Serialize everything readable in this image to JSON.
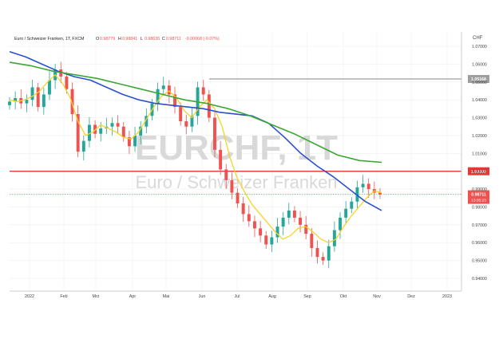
{
  "header": {
    "symbol": "Euro / Schweizer Franken, 1T, FXCM",
    "o_label": "O",
    "o_value": "0.98779",
    "h_label": "H",
    "h_value": "0.98841",
    "l_label": "L",
    "l_value": "0.98636",
    "c_label": "C",
    "c_value": "0.98711",
    "change": "-0.00068 (-0.07%)"
  },
  "watermark": {
    "ticker": "EURCHF, 1T",
    "name": "Euro / Schweizer Franken"
  },
  "colors": {
    "up": "#26a69a",
    "down": "#ef5350",
    "price_line": "#111111",
    "ma_fast": "#f5d327",
    "ma_mid": "#2a4fcf",
    "ma_slow": "#3aa832",
    "parity": "#e53935",
    "resistance": "#9e9e9e",
    "grid": "#eeeeee"
  },
  "chart_data": {
    "type": "line",
    "instrument": "EURCHF",
    "timeframe": "1T",
    "currency": "CHF",
    "x_ticks": [
      "2022",
      "Feb",
      "Mrz",
      "Apr",
      "Mai",
      "Jun",
      "Jul",
      "Aug",
      "Sep",
      "Okt",
      "Nov",
      "Dez",
      "2023"
    ],
    "y_ticks": [
      "1.07000",
      "1.06000",
      "1.05000",
      "1.04000",
      "1.03000",
      "1.02000",
      "1.01000",
      "1.00000",
      "0.99000",
      "0.98000",
      "0.97000",
      "0.96000",
      "0.95000",
      "0.94000"
    ],
    "ylim": [
      0.935,
      1.075
    ],
    "series": [
      {
        "name": "",
        "values": [
          1.039,
          1.041,
          1.038,
          1.04,
          1.047,
          1.036,
          1.043,
          1.051,
          1.057,
          1.053,
          1.046,
          1.032,
          1.011,
          1.017,
          1.026,
          1.021,
          1.024,
          1.025,
          1.027,
          1.025,
          1.019,
          1.014,
          1.02,
          1.025,
          1.031,
          1.038,
          1.046,
          1.048,
          1.043,
          1.036,
          1.028,
          1.025,
          1.031,
          1.047,
          1.043,
          1.03,
          1.012,
          1.001,
          0.995,
          0.988,
          0.982,
          0.976,
          0.972,
          0.968,
          0.964,
          0.959,
          0.963,
          0.969,
          0.974,
          0.978,
          0.974,
          0.97,
          0.965,
          0.957,
          0.952,
          0.95,
          0.958,
          0.967,
          0.974,
          0.979,
          0.983,
          0.991,
          0.993,
          0.99,
          0.988,
          0.987
        ]
      },
      {
        "name": "",
        "values": [
          1.04,
          1.039,
          1.04,
          1.042,
          1.045,
          1.05,
          1.054,
          1.049,
          1.041,
          1.028,
          1.02,
          1.022,
          1.026,
          1.024,
          1.022,
          1.019,
          1.018,
          1.022,
          1.029,
          1.036,
          1.042,
          1.045,
          1.041,
          1.034,
          1.03,
          1.036,
          1.04,
          1.035,
          1.025,
          1.008,
          0.996,
          0.988,
          0.981,
          0.976,
          0.971,
          0.966,
          0.962,
          0.964,
          0.968,
          0.969,
          0.966,
          0.962,
          0.96,
          0.962,
          0.969,
          0.975,
          0.98,
          0.985,
          0.989,
          0.988
        ]
      },
      {
        "name": "",
        "values": [
          1.067,
          1.064,
          1.06,
          1.056,
          1.053,
          1.051,
          1.047,
          1.043,
          1.04,
          1.038,
          1.037,
          1.036,
          1.035,
          1.033,
          1.032,
          1.031,
          1.027,
          1.019,
          1.01,
          1.003,
          0.997,
          0.99,
          0.983,
          0.978
        ]
      },
      {
        "name": "",
        "values": [
          1.061,
          1.059,
          1.056,
          1.054,
          1.052,
          1.049,
          1.046,
          1.043,
          1.04,
          1.038,
          1.035,
          1.031,
          1.026,
          1.021,
          1.015,
          1.009,
          1.006,
          1.005
        ]
      }
    ],
    "levels": [
      {
        "name": "",
        "value": 1.0,
        "label": "1.00000"
      },
      {
        "name": "",
        "value": 1.05168,
        "label": "1.05168"
      }
    ],
    "last_price": {
      "value": 0.98711,
      "label": "0.98711",
      "time_label": "13:05:23"
    },
    "grid": false,
    "legend": "none"
  }
}
